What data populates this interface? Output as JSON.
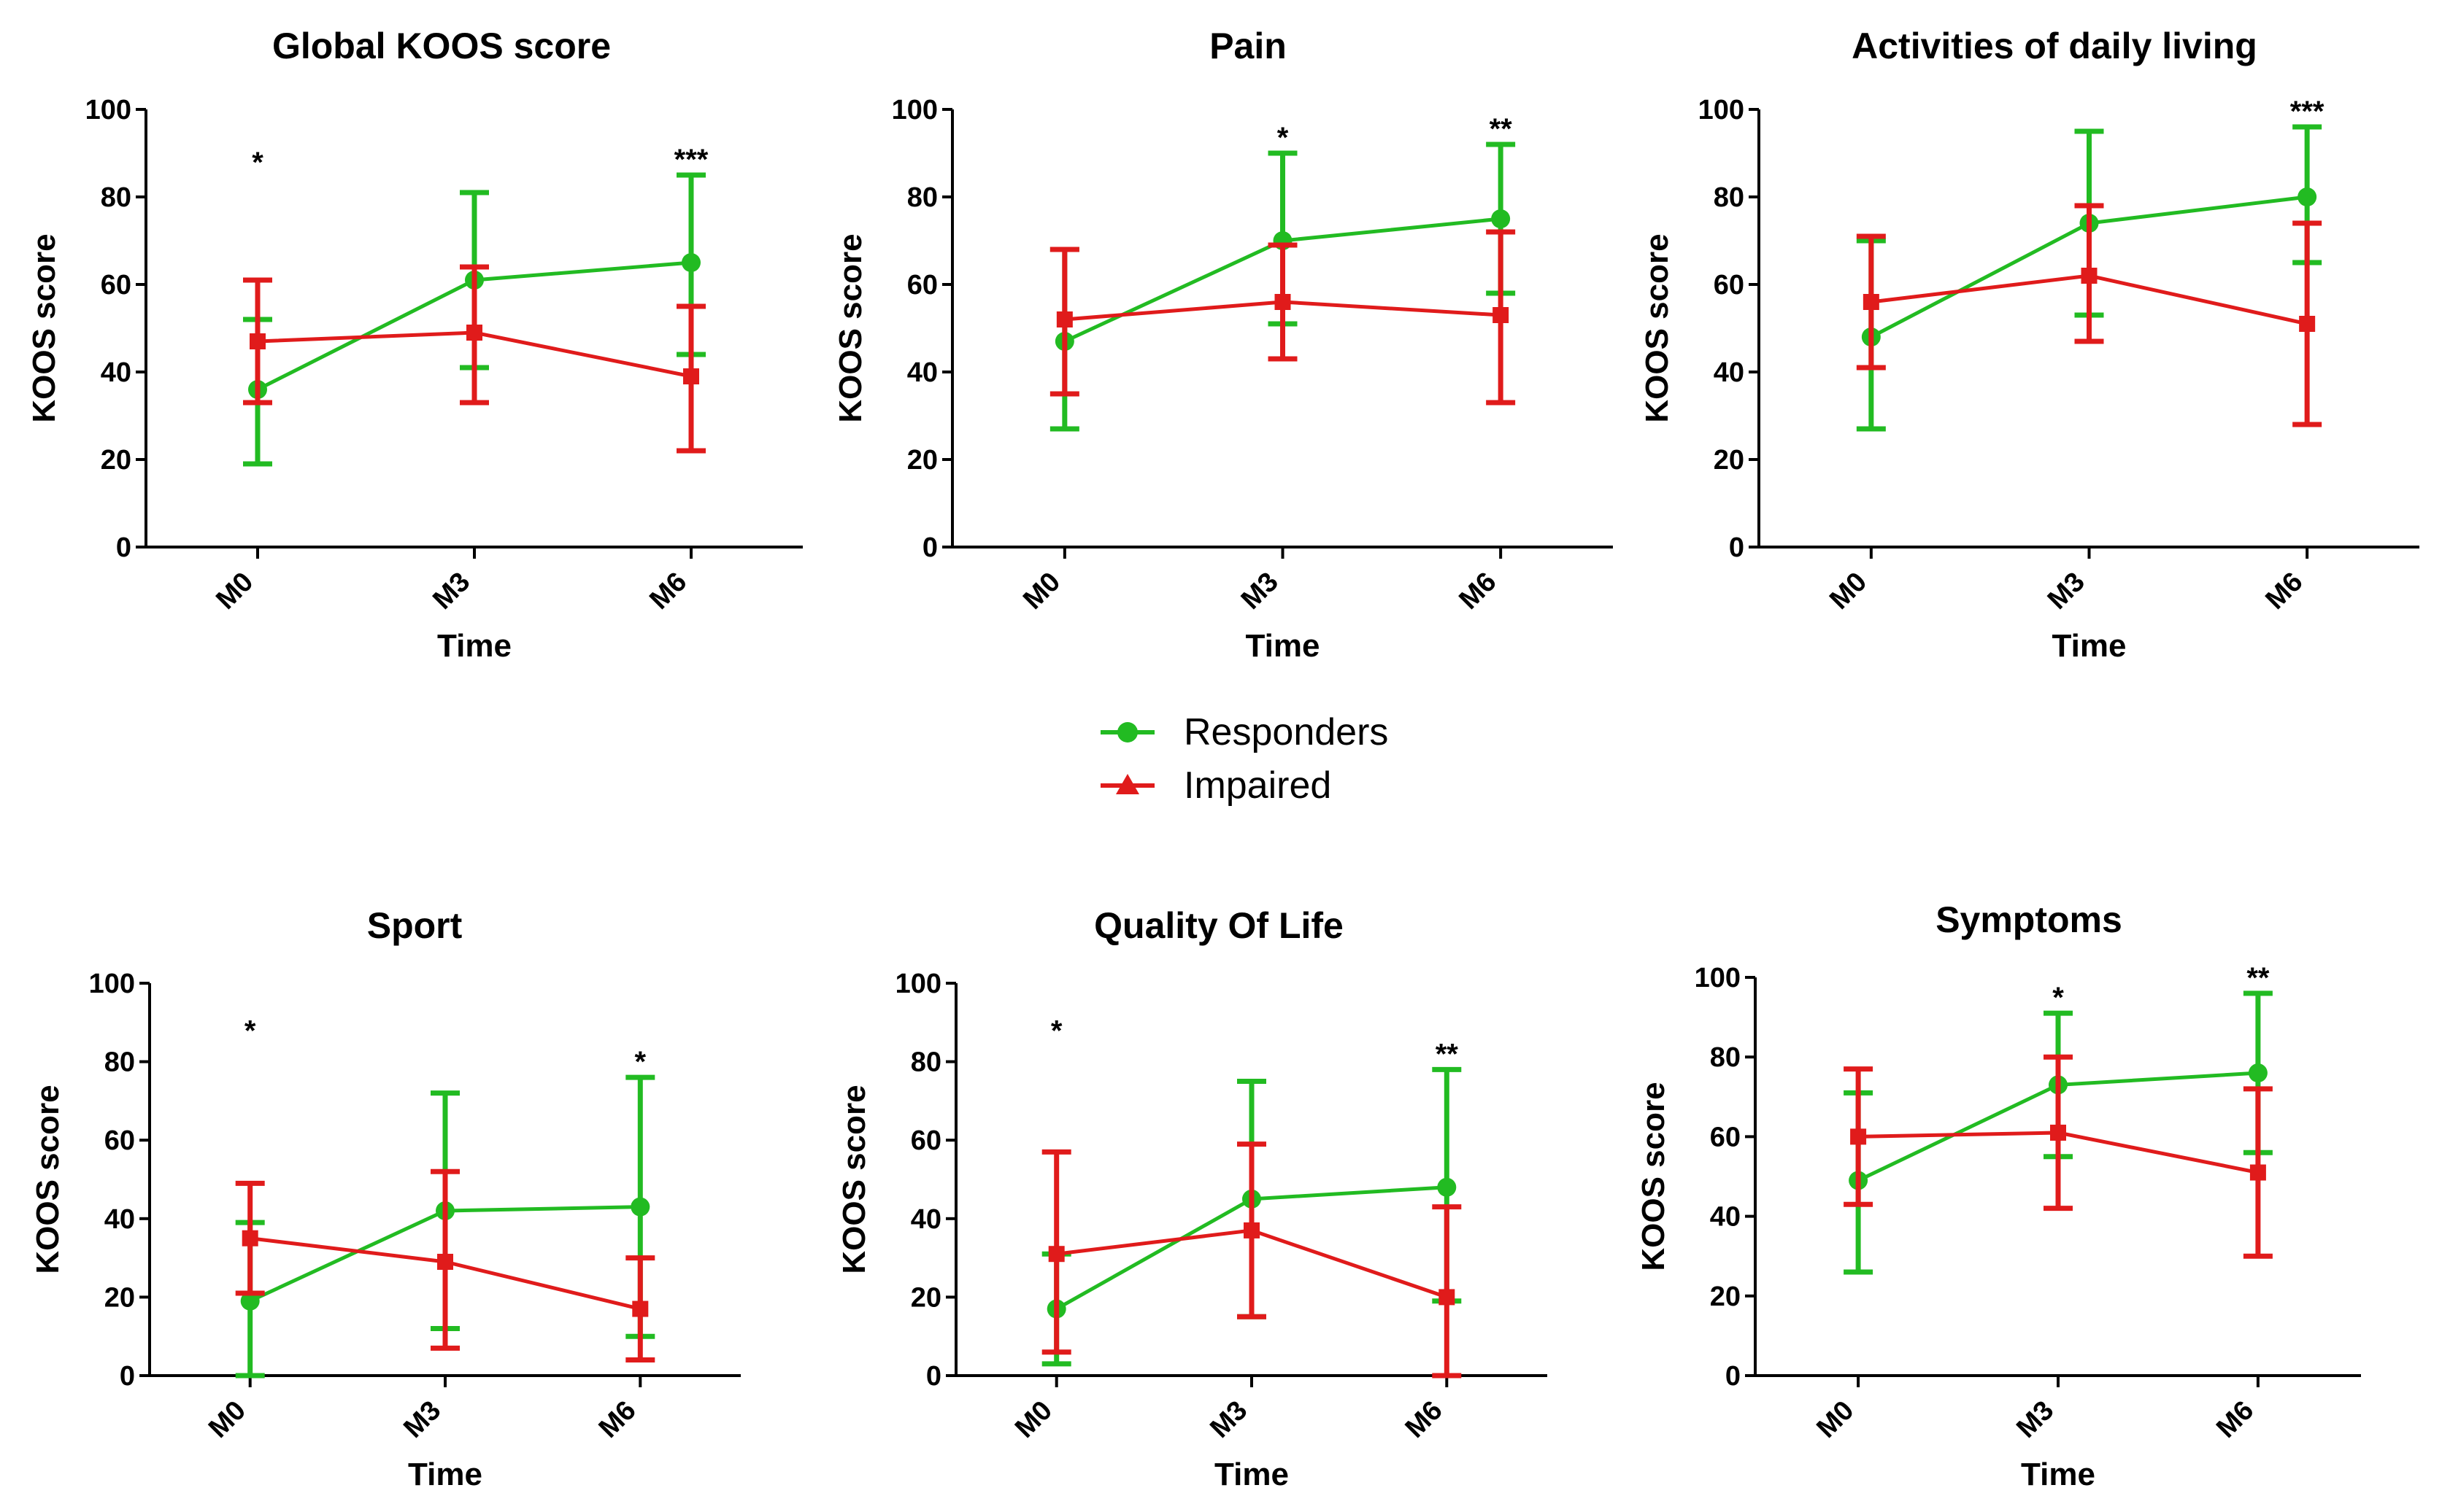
{
  "legend": [
    {
      "name": "Responders",
      "color": "#22bb22",
      "marker": "circle"
    },
    {
      "name": "Impaired",
      "color": "#e01b1b",
      "marker": "triangle"
    }
  ],
  "chart_data": [
    {
      "type": "line",
      "title": "Global KOOS score",
      "xlabel": "Time",
      "ylabel": "KOOS score",
      "categories": [
        "M0",
        "M3",
        "M6"
      ],
      "ylim": [
        0,
        100
      ],
      "yticks": [
        0,
        20,
        40,
        60,
        80,
        100
      ],
      "significance": [
        "*",
        "",
        "***"
      ],
      "series": [
        {
          "name": "Responders",
          "values": [
            36,
            61,
            65
          ],
          "upper": [
            52,
            81,
            85
          ],
          "lower": [
            19,
            41,
            44
          ]
        },
        {
          "name": "Impaired",
          "values": [
            47,
            49,
            39
          ],
          "upper": [
            61,
            64,
            55
          ],
          "lower": [
            33,
            33,
            22
          ]
        }
      ]
    },
    {
      "type": "line",
      "title": "Pain",
      "xlabel": "Time",
      "ylabel": "KOOS score",
      "categories": [
        "M0",
        "M3",
        "M6"
      ],
      "ylim": [
        0,
        100
      ],
      "yticks": [
        0,
        20,
        40,
        60,
        80,
        100
      ],
      "significance": [
        "",
        "*",
        "**"
      ],
      "series": [
        {
          "name": "Responders",
          "values": [
            47,
            70,
            75
          ],
          "upper": [
            68,
            90,
            92
          ],
          "lower": [
            27,
            51,
            58
          ]
        },
        {
          "name": "Impaired",
          "values": [
            52,
            56,
            53
          ],
          "upper": [
            68,
            69,
            72
          ],
          "lower": [
            35,
            43,
            33
          ]
        }
      ]
    },
    {
      "type": "line",
      "title": "Activities of daily living",
      "xlabel": "Time",
      "ylabel": "KOOS score",
      "categories": [
        "M0",
        "M3",
        "M6"
      ],
      "ylim": [
        0,
        100
      ],
      "yticks": [
        0,
        20,
        40,
        60,
        80,
        100
      ],
      "significance": [
        "",
        "",
        "***"
      ],
      "series": [
        {
          "name": "Responders",
          "values": [
            48,
            74,
            80
          ],
          "upper": [
            70,
            95,
            96
          ],
          "lower": [
            27,
            53,
            65
          ]
        },
        {
          "name": "Impaired",
          "values": [
            56,
            62,
            51
          ],
          "upper": [
            71,
            78,
            74
          ],
          "lower": [
            41,
            47,
            28
          ]
        }
      ]
    },
    {
      "type": "line",
      "title": "Sport",
      "xlabel": "Time",
      "ylabel": "KOOS score",
      "categories": [
        "M0",
        "M3",
        "M6"
      ],
      "ylim": [
        0,
        100
      ],
      "yticks": [
        0,
        20,
        40,
        60,
        80,
        100
      ],
      "significance": [
        "*",
        "",
        "*"
      ],
      "series": [
        {
          "name": "Responders",
          "values": [
            19,
            42,
            43
          ],
          "upper": [
            39,
            72,
            76
          ],
          "lower": [
            0,
            12,
            10
          ]
        },
        {
          "name": "Impaired",
          "values": [
            35,
            29,
            17
          ],
          "upper": [
            49,
            52,
            30
          ],
          "lower": [
            21,
            7,
            4
          ]
        }
      ]
    },
    {
      "type": "line",
      "title": "Quality Of Life",
      "xlabel": "Time",
      "ylabel": "KOOS score",
      "categories": [
        "M0",
        "M3",
        "M6"
      ],
      "ylim": [
        0,
        100
      ],
      "yticks": [
        0,
        20,
        40,
        60,
        80,
        100
      ],
      "significance": [
        "*",
        "",
        "**"
      ],
      "series": [
        {
          "name": "Responders",
          "values": [
            17,
            45,
            48
          ],
          "upper": [
            31,
            75,
            78
          ],
          "lower": [
            3,
            15,
            19
          ]
        },
        {
          "name": "Impaired",
          "values": [
            31,
            37,
            20
          ],
          "upper": [
            57,
            59,
            43
          ],
          "lower": [
            6,
            15,
            0
          ]
        }
      ]
    },
    {
      "type": "line",
      "title": "Symptoms",
      "xlabel": "Time",
      "ylabel": "KOOS score",
      "categories": [
        "M0",
        "M3",
        "M6"
      ],
      "ylim": [
        0,
        100
      ],
      "yticks": [
        0,
        20,
        40,
        60,
        80,
        100
      ],
      "significance": [
        "",
        "*",
        "**"
      ],
      "series": [
        {
          "name": "Responders",
          "values": [
            49,
            73,
            76
          ],
          "upper": [
            71,
            91,
            96
          ],
          "lower": [
            26,
            55,
            56
          ]
        },
        {
          "name": "Impaired",
          "values": [
            60,
            61,
            51
          ],
          "upper": [
            77,
            80,
            72
          ],
          "lower": [
            43,
            42,
            30
          ]
        }
      ]
    }
  ]
}
